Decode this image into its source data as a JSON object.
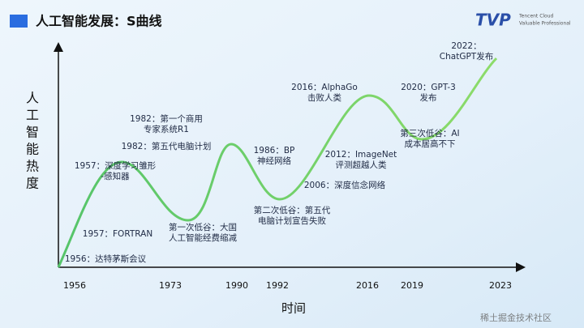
{
  "header": {
    "title": "人工智能发展：S曲线",
    "logo": "TVP",
    "logo_sub": [
      "Tencent Cloud",
      "Valuable Professional"
    ]
  },
  "y_axis_label": [
    "人",
    "工",
    "智",
    "能",
    "热",
    "度"
  ],
  "x_axis_label": "时间",
  "x_ticks": [
    "1956",
    "1973",
    "1990",
    "1992",
    "2016",
    "2019",
    "2023"
  ],
  "annotations": [
    {
      "lines": [
        "2022：",
        "ChatGPT发布"
      ]
    },
    {
      "lines": [
        "2016：AlphaGo",
        "击败人类"
      ]
    },
    {
      "lines": [
        "2020：GPT-3",
        "发布"
      ]
    },
    {
      "lines": [
        "1982：第一个商用",
        "专家系统R1"
      ]
    },
    {
      "lines": [
        "1982：第五代电脑计划"
      ]
    },
    {
      "lines": [
        "第三次低谷：AI",
        "成本居高不下"
      ]
    },
    {
      "lines": [
        "1986：BP",
        "神经网络"
      ]
    },
    {
      "lines": [
        "2012：ImageNet",
        "评测超越人类"
      ]
    },
    {
      "lines": [
        "1957：深度学习雏形",
        "-感知器"
      ]
    },
    {
      "lines": [
        "2006：深度信念网络"
      ]
    },
    {
      "lines": [
        "第二次低谷：第五代",
        "电脑计划宣告失败"
      ]
    },
    {
      "lines": [
        "第一次低谷：大国",
        "人工智能经费缩减"
      ]
    },
    {
      "lines": [
        "1957：FORTRAN"
      ]
    },
    {
      "lines": [
        "1956：达特茅斯会议"
      ]
    }
  ],
  "watermark": "稀土掘金技术社区"
}
